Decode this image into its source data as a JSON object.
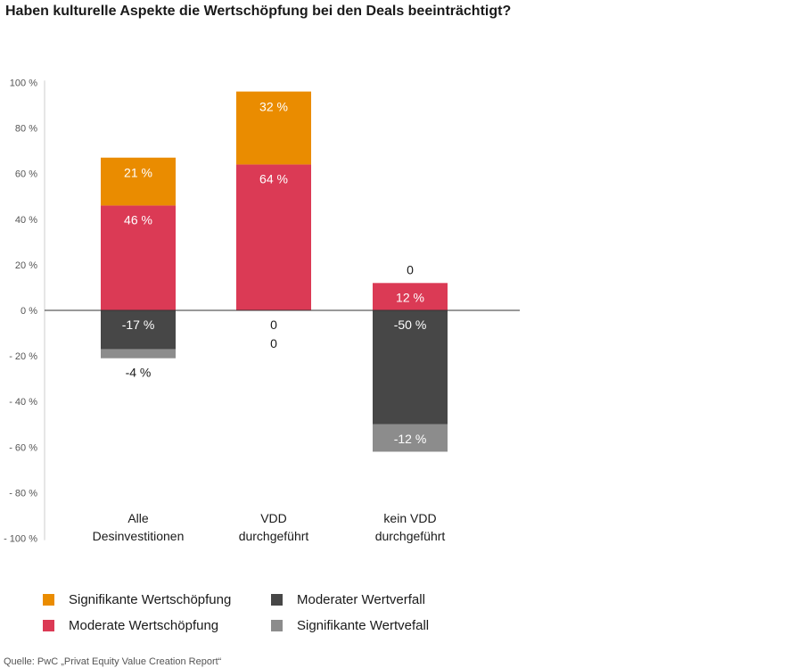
{
  "title": "Haben kulturelle Aspekte die Wertschöpfung bei den Deals beeinträchtigt?",
  "source": "Quelle: PwC „Privat Equity Value Creation Report“",
  "colors": {
    "significant_creation": "#ea8c00",
    "moderate_creation": "#db3a55",
    "moderate_loss": "#474747",
    "significant_loss": "#8c8c8c"
  },
  "chart_data": {
    "type": "bar",
    "stacked": true,
    "ylim": [
      -100,
      100
    ],
    "yticks": [
      100,
      80,
      60,
      40,
      20,
      0,
      -20,
      -40,
      -60,
      -80,
      -100
    ],
    "ytick_labels": [
      "100 %",
      "80 %",
      "60 %",
      "40 %",
      "20 %",
      "0 %",
      "- 20 %",
      "- 40 %",
      "- 60 %",
      "- 80 %",
      "- 100 %"
    ],
    "categories": [
      [
        "Alle",
        "Desinvestitionen"
      ],
      [
        "VDD",
        "durchgeführt"
      ],
      [
        "kein VDD",
        "durchgeführt"
      ]
    ],
    "series": [
      {
        "name": "Moderate Wertschöpfung",
        "color": "#db3a55",
        "values": [
          46,
          64,
          12
        ],
        "labels": [
          "46 %",
          "64 %",
          "12 %"
        ]
      },
      {
        "name": "Signifikante Wertschöpfung",
        "color": "#ea8c00",
        "values": [
          21,
          32,
          0
        ],
        "labels": [
          "21 %",
          "32 %",
          "0"
        ]
      },
      {
        "name": "Moderater Wertverfall",
        "color": "#474747",
        "values": [
          -17,
          0,
          -50
        ],
        "labels": [
          "-17 %",
          "0",
          "-50 %"
        ]
      },
      {
        "name": "Signifikante Wertvefall",
        "color": "#8c8c8c",
        "values": [
          -4,
          0,
          -12
        ],
        "labels": [
          "-4 %",
          "0",
          "-12 %"
        ]
      }
    ],
    "grid": false,
    "legend_position": "bottom"
  },
  "legend": [
    {
      "label": "Signifikante Wertschöpfung",
      "color": "#ea8c00"
    },
    {
      "label": "Moderater Wertverfall",
      "color": "#474747"
    },
    {
      "label": "Moderate Wertschöpfung",
      "color": "#db3a55"
    },
    {
      "label": "Signifikante Wertvefall",
      "color": "#8c8c8c"
    }
  ]
}
